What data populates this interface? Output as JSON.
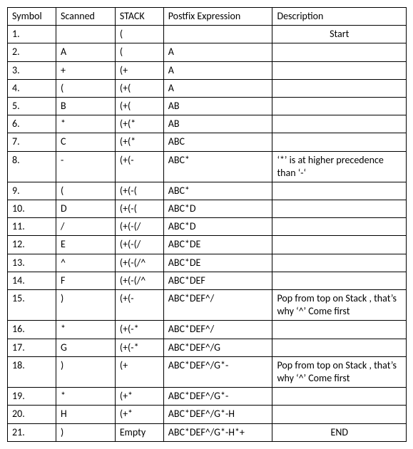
{
  "headers": {
    "symbol": "Symbol",
    "scanned": "Scanned",
    "stack": "STACK",
    "postfix": "Postfix Expression",
    "description": "Description"
  },
  "rows": [
    {
      "symbol": "1.",
      "scanned": "",
      "stack": "(",
      "postfix": "",
      "description": "Start",
      "descClass": "center"
    },
    {
      "symbol": "2.",
      "scanned": "A",
      "stack": "(",
      "postfix": "A",
      "description": ""
    },
    {
      "symbol": "3.",
      "scanned": "+",
      "stack": "(+",
      "postfix": "A",
      "description": ""
    },
    {
      "symbol": "4.",
      "scanned": "(",
      "stack": "(+(",
      "postfix": "A",
      "description": ""
    },
    {
      "symbol": "5.",
      "scanned": "B",
      "stack": "(+(",
      "postfix": "AB",
      "description": ""
    },
    {
      "symbol": "6.",
      "scanned": "*",
      "stack": "(+(*",
      "postfix": "AB",
      "description": ""
    },
    {
      "symbol": "7.",
      "scanned": "C",
      "stack": "(+(*",
      "postfix": "ABC",
      "description": ""
    },
    {
      "symbol": "8.",
      "scanned": "-",
      "stack": "(+(-",
      "postfix": "ABC*",
      "description": "‘*’ is at higher precedence than ‘-‘"
    },
    {
      "symbol": "9.",
      "scanned": "(",
      "stack": "(+(-(",
      "postfix": "ABC*",
      "description": ""
    },
    {
      "symbol": "10.",
      "scanned": "D",
      "stack": "(+(-(",
      "postfix": "ABC*D",
      "description": ""
    },
    {
      "symbol": "11.",
      "scanned": "/",
      "stack": "(+(-(/",
      "postfix": "ABC*D",
      "description": ""
    },
    {
      "symbol": "12.",
      "scanned": "E",
      "stack": "(+(-(/",
      "postfix": "ABC*DE",
      "description": ""
    },
    {
      "symbol": "13.",
      "scanned": "^",
      "stack": "(+(-(/^",
      "postfix": "ABC*DE",
      "description": ""
    },
    {
      "symbol": "14.",
      "scanned": "F",
      "stack": "(+(-(/^",
      "postfix": "ABC*DEF",
      "description": ""
    },
    {
      "symbol": "15.",
      "scanned": ")",
      "stack": "(+(-",
      "postfix": "ABC*DEF^/",
      "description": "Pop from top on Stack , that’s why ‘^’ Come first"
    },
    {
      "symbol": "16.",
      "scanned": "*",
      "stack": "(+(-*",
      "postfix": "ABC*DEF^/",
      "description": ""
    },
    {
      "symbol": "17.",
      "scanned": "G",
      "stack": "(+(-*",
      "postfix": "ABC*DEF^/G",
      "description": ""
    },
    {
      "symbol": "18.",
      "scanned": ")",
      "stack": "(+",
      "postfix": "ABC*DEF^/G*-",
      "description": "Pop from top on Stack , that’s why ‘^’ Come first"
    },
    {
      "symbol": "19.",
      "scanned": "*",
      "stack": "(+*",
      "postfix": "ABC*DEF^/G*-",
      "description": ""
    },
    {
      "symbol": "20.",
      "scanned": "H",
      "stack": "(+*",
      "postfix": "ABC*DEF^/G*-H",
      "description": ""
    },
    {
      "symbol": "21.",
      "scanned": ")",
      "stack": "Empty",
      "postfix": "ABC*DEF^/G*-H*+",
      "description": "END",
      "descClass": "center"
    }
  ]
}
